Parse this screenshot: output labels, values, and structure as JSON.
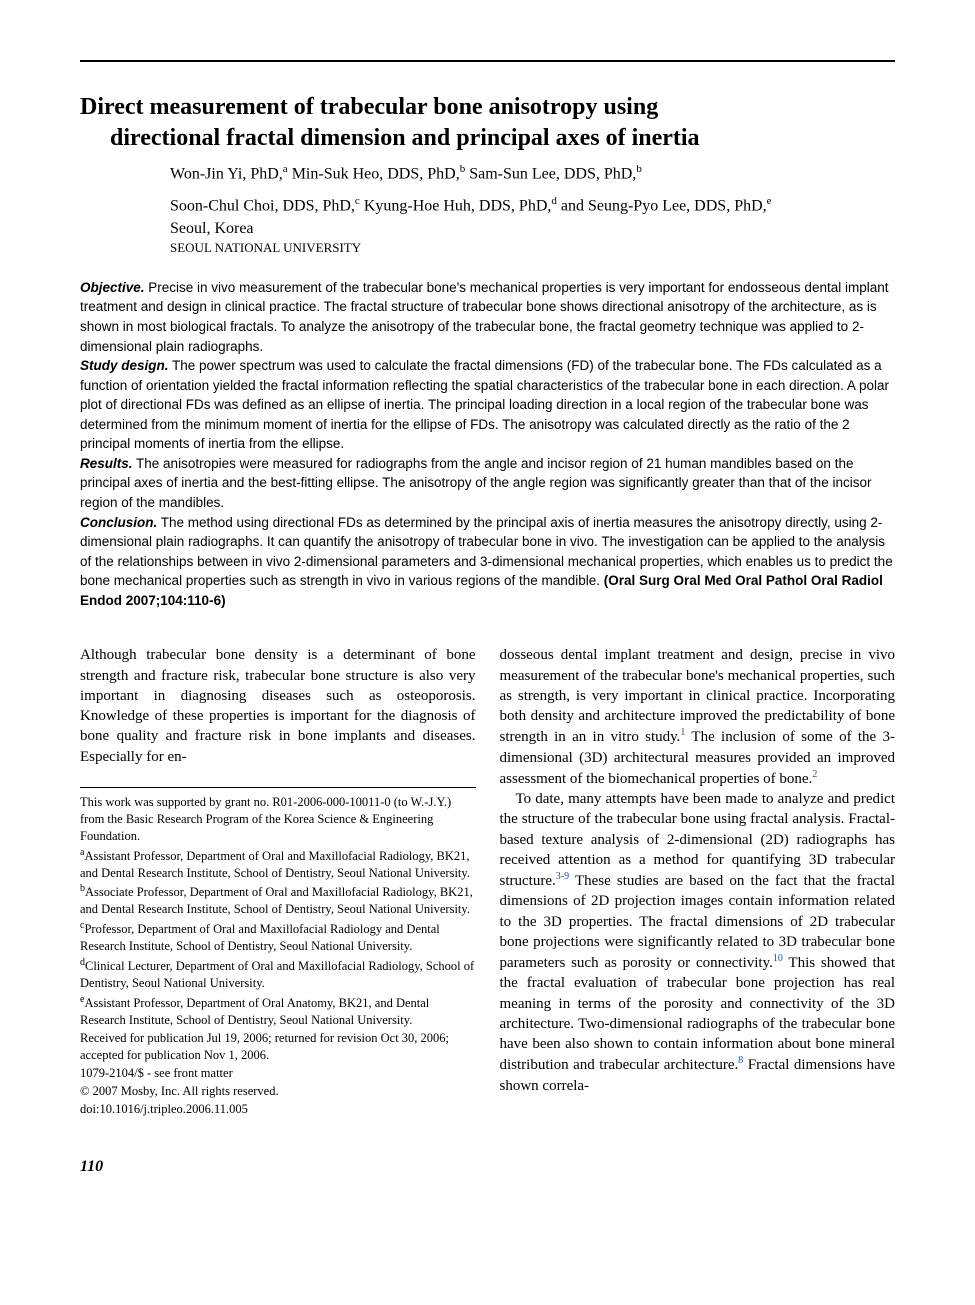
{
  "title": {
    "line1": "Direct measurement of trabecular bone anisotropy using",
    "line2": "directional fractal dimension and principal axes of inertia"
  },
  "authors": {
    "line1_parts": [
      {
        "name": "Won-Jin Yi, PhD,",
        "sup": "a"
      },
      {
        "name": " Min-Suk Heo, DDS, PhD,",
        "sup": "b"
      },
      {
        "name": " Sam-Sun Lee, DDS, PhD,",
        "sup": "b"
      }
    ],
    "line2_parts": [
      {
        "name": "Soon-Chul Choi, DDS, PhD,",
        "sup": "c"
      },
      {
        "name": " Kyung-Hoe Huh, DDS, PhD,",
        "sup": "d"
      },
      {
        "name": " and Seung-Pyo Lee, DDS, PhD,",
        "sup": "e"
      }
    ]
  },
  "location": "Seoul, Korea",
  "institution": "SEOUL NATIONAL UNIVERSITY",
  "abstract": {
    "sections": [
      {
        "label": "Objective.",
        "text": " Precise in vivo measurement of the trabecular bone's mechanical properties is very important for endosseous dental implant treatment and design in clinical practice. The fractal structure of trabecular bone shows directional anisotropy of the architecture, as is shown in most biological fractals. To analyze the anisotropy of the trabecular bone, the fractal geometry technique was applied to 2-dimensional plain radiographs."
      },
      {
        "label": "Study design.",
        "text": " The power spectrum was used to calculate the fractal dimensions (FD) of the trabecular bone. The FDs calculated as a function of orientation yielded the fractal information reflecting the spatial characteristics of the trabecular bone in each direction. A polar plot of directional FDs was defined as an ellipse of inertia. The principal loading direction in a local region of the trabecular bone was determined from the minimum moment of inertia for the ellipse of FDs. The anisotropy was calculated directly as the ratio of the 2 principal moments of inertia from the ellipse."
      },
      {
        "label": "Results.",
        "text": " The anisotropies were measured for radiographs from the angle and incisor region of 21 human mandibles based on the principal axes of inertia and the best-fitting ellipse. The anisotropy of the angle region was significantly greater than that of the incisor region of the mandibles."
      },
      {
        "label": "Conclusion.",
        "text": " The method using directional FDs as determined by the principal axis of inertia measures the anisotropy directly, using 2-dimensional plain radiographs. It can quantify the anisotropy of trabecular bone in vivo. The investigation can be applied to the analysis of the relationships between in vivo 2-dimensional parameters and 3-dimensional mechanical properties, which enables us to predict the bone mechanical properties such as strength in vivo in various regions of the mandible. "
      }
    ],
    "citation": "(Oral Surg Oral Med Oral Pathol Oral Radiol Endod 2007;104:110-6)"
  },
  "body": {
    "col1_p1": "Although trabecular bone density is a determinant of bone strength and fracture risk, trabecular bone structure is also very important in diagnosing diseases such as osteoporosis. Knowledge of these properties is important for the diagnosis of bone quality and fracture risk in bone implants and diseases. Especially for en-",
    "col2_p1_before": "dosseous dental implant treatment and design, precise in vivo measurement of the trabecular bone's mechanical properties, such as strength, is very important in clinical practice. Incorporating both density and architecture improved the predictability of bone strength in an in vitro study.",
    "col2_p1_ref1": "1",
    "col2_p1_after1": " The inclusion of some of the 3-dimensional (3D) architectural measures provided an improved assessment of the biomechanical properties of bone.",
    "col2_p1_ref2": "2",
    "col2_p2_a": "To date, many attempts have been made to analyze and predict the structure of the trabecular bone using fractal analysis. Fractal-based texture analysis of 2-dimensional (2D) radiographs has received attention as a method for quantifying 3D trabecular structure.",
    "col2_p2_ref1": "3-9",
    "col2_p2_b": " These studies are based on the fact that the fractal dimensions of 2D projection images contain information related to the 3D properties. The fractal dimensions of 2D trabecular bone projections were significantly related to 3D trabecular bone parameters such as porosity or connectivity.",
    "col2_p2_ref2": "10",
    "col2_p2_c": " This showed that the fractal evaluation of trabecular bone projection has real meaning in terms of the porosity and connectivity of the 3D architecture. Two-dimensional radiographs of the trabecular bone have been also shown to contain information about bone mineral distribution and trabecular architecture.",
    "col2_p2_ref3": "8",
    "col2_p2_d": " Fractal dimensions have shown correla-"
  },
  "footnotes": {
    "funding": "This work was supported by grant no. R01-2006-000-10011-0 (to W.-J.Y.) from the Basic Research Program of the Korea Science & Engineering Foundation.",
    "affiliations": [
      {
        "sup": "a",
        "text": "Assistant Professor, Department of Oral and Maxillofacial Radiology, BK21, and Dental Research Institute, School of Dentistry, Seoul National University."
      },
      {
        "sup": "b",
        "text": "Associate Professor, Department of Oral and Maxillofacial Radiology, BK21, and Dental Research Institute, School of Dentistry, Seoul National University."
      },
      {
        "sup": "c",
        "text": "Professor, Department of Oral and Maxillofacial Radiology and Dental Research Institute, School of Dentistry, Seoul National University."
      },
      {
        "sup": "d",
        "text": "Clinical Lecturer, Department of Oral and Maxillofacial Radiology, School of Dentistry, Seoul National University."
      },
      {
        "sup": "e",
        "text": "Assistant Professor, Department of Oral Anatomy, BK21, and Dental Research Institute, School of Dentistry, Seoul National University."
      }
    ],
    "received": "Received for publication Jul 19, 2006; returned for revision Oct 30, 2006; accepted for publication Nov 1, 2006.",
    "issn": "1079-2104/$ - see front matter",
    "copyright": "© 2007 Mosby, Inc. All rights reserved.",
    "doi": "doi:10.1016/j.tripleo.2006.11.005"
  },
  "page_number": "110"
}
